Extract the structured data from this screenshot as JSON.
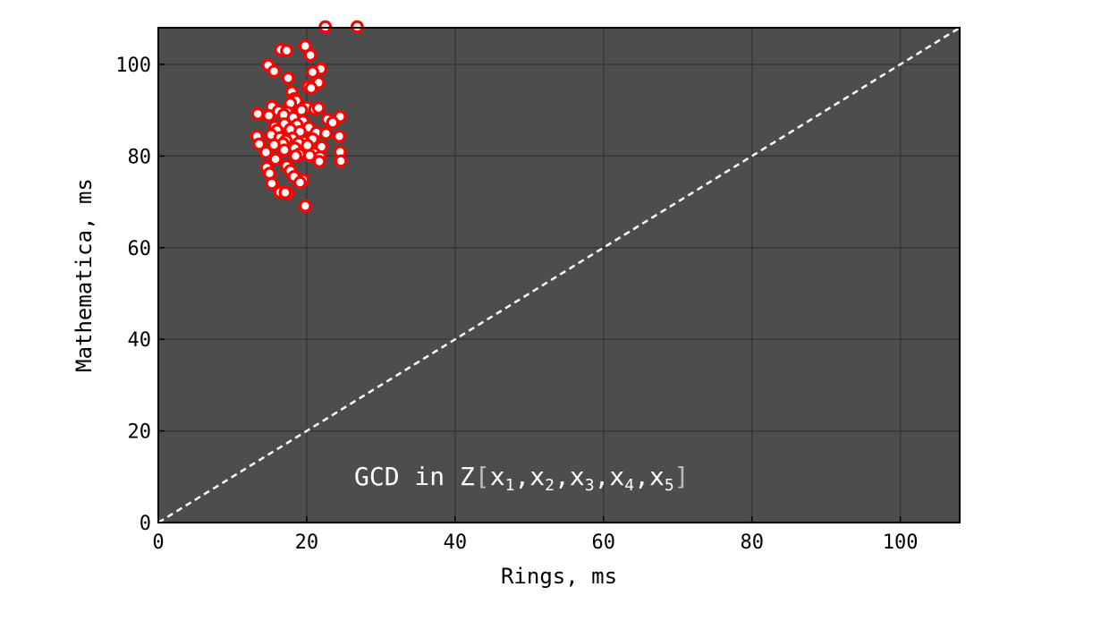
{
  "chart_data": {
    "type": "scatter",
    "title": "",
    "xlabel": "Rings, ms",
    "ylabel": "Mathematica, ms",
    "xlim": [
      0,
      108
    ],
    "ylim": [
      0,
      108
    ],
    "x_ticks": [
      0,
      20,
      40,
      60,
      80,
      100
    ],
    "y_ticks": [
      0,
      20,
      40,
      60,
      80,
      100
    ],
    "x_tick_labels": [
      "0",
      "20",
      "40",
      "60",
      "80",
      "100"
    ],
    "y_tick_labels": [
      "0",
      "20",
      "40",
      "60",
      "80",
      "100"
    ],
    "grid": true,
    "background_color": "#4d4d4d",
    "grid_color": "#333333",
    "marker_fill": "#ffffff",
    "marker_edge": "#ff0000",
    "reference_line": {
      "style": "dashed",
      "color": "#ffffff",
      "from": [
        0,
        0
      ],
      "to": [
        108,
        108
      ]
    },
    "annotation": {
      "base": "GCD in Z",
      "open": "[",
      "close": "]",
      "vars": [
        {
          "name": "x",
          "sub": "1"
        },
        {
          "name": "x",
          "sub": "2"
        },
        {
          "name": "x",
          "sub": "3"
        },
        {
          "name": "x",
          "sub": "4"
        },
        {
          "name": "x",
          "sub": "5"
        }
      ],
      "separator": ","
    },
    "points": [
      {
        "x": 22.5,
        "y": 108.2
      },
      {
        "x": 26.8,
        "y": 108.2
      },
      {
        "x": 19.8,
        "y": 104.0
      },
      {
        "x": 16.5,
        "y": 103.2
      },
      {
        "x": 17.3,
        "y": 103.0
      },
      {
        "x": 20.5,
        "y": 102.0
      },
      {
        "x": 14.8,
        "y": 99.8
      },
      {
        "x": 21.9,
        "y": 99.0
      },
      {
        "x": 15.6,
        "y": 98.5
      },
      {
        "x": 20.8,
        "y": 98.3
      },
      {
        "x": 17.5,
        "y": 97.0
      },
      {
        "x": 21.6,
        "y": 96.0
      },
      {
        "x": 20.2,
        "y": 95.2
      },
      {
        "x": 20.6,
        "y": 94.8
      },
      {
        "x": 18.0,
        "y": 94.0
      },
      {
        "x": 18.3,
        "y": 92.5
      },
      {
        "x": 18.6,
        "y": 92.1
      },
      {
        "x": 17.8,
        "y": 91.5
      },
      {
        "x": 15.3,
        "y": 90.8
      },
      {
        "x": 20.0,
        "y": 90.6
      },
      {
        "x": 21.1,
        "y": 90.2
      },
      {
        "x": 21.6,
        "y": 90.5
      },
      {
        "x": 19.3,
        "y": 90.0
      },
      {
        "x": 16.2,
        "y": 89.8
      },
      {
        "x": 17.4,
        "y": 89.5
      },
      {
        "x": 16.9,
        "y": 89.0
      },
      {
        "x": 13.4,
        "y": 89.2
      },
      {
        "x": 14.9,
        "y": 88.8
      },
      {
        "x": 18.2,
        "y": 88.4
      },
      {
        "x": 22.8,
        "y": 88.0
      },
      {
        "x": 24.5,
        "y": 88.6
      },
      {
        "x": 23.5,
        "y": 87.3
      },
      {
        "x": 19.5,
        "y": 87.6
      },
      {
        "x": 17.0,
        "y": 87.0
      },
      {
        "x": 15.7,
        "y": 86.4
      },
      {
        "x": 18.7,
        "y": 86.8
      },
      {
        "x": 20.3,
        "y": 86.2
      },
      {
        "x": 16.0,
        "y": 85.6
      },
      {
        "x": 17.8,
        "y": 85.8
      },
      {
        "x": 19.1,
        "y": 85.3
      },
      {
        "x": 21.3,
        "y": 85.1
      },
      {
        "x": 22.6,
        "y": 84.9
      },
      {
        "x": 15.2,
        "y": 84.6
      },
      {
        "x": 13.3,
        "y": 84.3
      },
      {
        "x": 16.4,
        "y": 84.0
      },
      {
        "x": 18.1,
        "y": 83.9
      },
      {
        "x": 20.8,
        "y": 83.7
      },
      {
        "x": 24.4,
        "y": 84.3
      },
      {
        "x": 17.2,
        "y": 83.4
      },
      {
        "x": 19.6,
        "y": 83.1
      },
      {
        "x": 18.9,
        "y": 82.8
      },
      {
        "x": 16.8,
        "y": 82.7
      },
      {
        "x": 13.6,
        "y": 82.6
      },
      {
        "x": 15.6,
        "y": 82.4
      },
      {
        "x": 20.1,
        "y": 82.3
      },
      {
        "x": 22.0,
        "y": 82.0
      },
      {
        "x": 18.4,
        "y": 81.7
      },
      {
        "x": 17.0,
        "y": 81.3
      },
      {
        "x": 14.5,
        "y": 80.8
      },
      {
        "x": 21.0,
        "y": 80.6
      },
      {
        "x": 24.5,
        "y": 80.9
      },
      {
        "x": 19.0,
        "y": 80.4
      },
      {
        "x": 20.4,
        "y": 80.1
      },
      {
        "x": 18.5,
        "y": 80.0
      },
      {
        "x": 21.8,
        "y": 79.8
      },
      {
        "x": 15.8,
        "y": 79.3
      },
      {
        "x": 24.6,
        "y": 78.9
      },
      {
        "x": 21.7,
        "y": 78.8
      },
      {
        "x": 17.3,
        "y": 77.8
      },
      {
        "x": 14.6,
        "y": 77.5
      },
      {
        "x": 17.8,
        "y": 76.8
      },
      {
        "x": 15.0,
        "y": 76.2
      },
      {
        "x": 18.3,
        "y": 75.5
      },
      {
        "x": 19.5,
        "y": 74.8
      },
      {
        "x": 15.3,
        "y": 74.0
      },
      {
        "x": 19.1,
        "y": 74.2
      },
      {
        "x": 16.4,
        "y": 72.1
      },
      {
        "x": 17.5,
        "y": 71.9
      },
      {
        "x": 17.1,
        "y": 72.0
      },
      {
        "x": 19.8,
        "y": 69.1
      }
    ]
  }
}
